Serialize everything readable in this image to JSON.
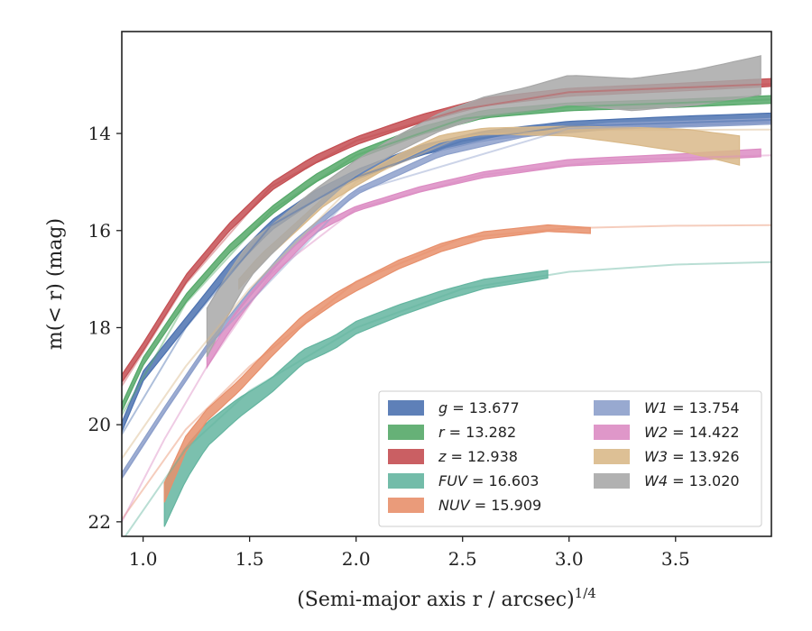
{
  "chart_data": {
    "type": "line",
    "xlabel_main": "(Semi-major axis r / arcsec)",
    "xlabel_exp": "1/4",
    "ylabel": "m(< r) (mag)",
    "xlim": [
      0.9,
      3.95
    ],
    "ylim": [
      22.3,
      11.9
    ],
    "y_inverted": true,
    "grid": false,
    "legend_placement": "bottom-right",
    "legend_columns": 2,
    "xticks": [
      1.0,
      1.5,
      2.0,
      2.5,
      3.0,
      3.5
    ],
    "xtick_labels": [
      "1.0",
      "1.5",
      "2.0",
      "2.5",
      "3.0",
      "3.5"
    ],
    "yticks": [
      14,
      16,
      18,
      20,
      22
    ],
    "ytick_labels": [
      "14",
      "16",
      "18",
      "20",
      "22"
    ],
    "series": [
      {
        "name": "g",
        "legend_value": "13.677",
        "legend_label": "g = 13.677",
        "color": "#4c72b0",
        "data": [
          [
            0.9,
            20.05
          ],
          [
            1.0,
            19.0
          ],
          [
            1.2,
            17.9
          ],
          [
            1.4,
            16.8
          ],
          [
            1.6,
            15.9
          ],
          [
            1.8,
            15.3
          ],
          [
            2.0,
            14.85
          ],
          [
            2.3,
            14.35
          ],
          [
            2.6,
            14.05
          ],
          [
            3.0,
            13.85
          ],
          [
            3.5,
            13.75
          ],
          [
            3.95,
            13.68
          ]
        ],
        "band": [
          [
            0.9,
            0.1
          ],
          [
            3.95,
            0.1
          ]
        ],
        "model": [
          [
            0.9,
            20.2
          ],
          [
            1.2,
            18.0
          ],
          [
            1.6,
            15.9
          ],
          [
            2.0,
            14.9
          ],
          [
            2.5,
            14.15
          ],
          [
            3.0,
            13.85
          ],
          [
            3.95,
            13.72
          ]
        ]
      },
      {
        "name": "r",
        "legend_value": "13.282",
        "legend_label": "r = 13.282",
        "color": "#55a868",
        "data": [
          [
            0.9,
            19.65
          ],
          [
            1.0,
            18.7
          ],
          [
            1.2,
            17.4
          ],
          [
            1.4,
            16.4
          ],
          [
            1.6,
            15.6
          ],
          [
            1.8,
            14.95
          ],
          [
            2.0,
            14.45
          ],
          [
            2.3,
            13.95
          ],
          [
            2.6,
            13.6
          ],
          [
            3.0,
            13.45
          ],
          [
            3.5,
            13.38
          ],
          [
            3.95,
            13.3
          ]
        ],
        "band": [
          [
            0.9,
            0.08
          ],
          [
            3.95,
            0.08
          ]
        ],
        "model": [
          [
            0.9,
            19.8
          ],
          [
            1.2,
            17.5
          ],
          [
            1.6,
            15.6
          ],
          [
            2.0,
            14.45
          ],
          [
            2.5,
            13.7
          ],
          [
            3.0,
            13.45
          ],
          [
            3.95,
            13.3
          ]
        ]
      },
      {
        "name": "z",
        "legend_value": "12.938",
        "legend_label": "z = 12.938",
        "color": "#c44e52",
        "data": [
          [
            0.9,
            19.05
          ],
          [
            1.0,
            18.4
          ],
          [
            1.2,
            17.0
          ],
          [
            1.4,
            15.95
          ],
          [
            1.6,
            15.1
          ],
          [
            1.8,
            14.55
          ],
          [
            2.0,
            14.15
          ],
          [
            2.3,
            13.7
          ],
          [
            2.6,
            13.35
          ],
          [
            3.0,
            13.15
          ],
          [
            3.5,
            13.05
          ],
          [
            3.95,
            12.95
          ]
        ],
        "band": [
          [
            0.9,
            0.08
          ],
          [
            3.95,
            0.08
          ]
        ],
        "model": [
          [
            0.9,
            19.2
          ],
          [
            1.2,
            17.1
          ],
          [
            1.6,
            15.1
          ],
          [
            2.0,
            14.15
          ],
          [
            2.5,
            13.5
          ],
          [
            3.0,
            13.15
          ],
          [
            3.95,
            12.98
          ]
        ]
      },
      {
        "name": "FUV",
        "legend_value": "16.603",
        "legend_label": "FUV = 16.603",
        "color": "#64b5a0",
        "data": [
          [
            1.1,
            21.65
          ],
          [
            1.2,
            20.8
          ],
          [
            1.3,
            20.2
          ],
          [
            1.45,
            19.65
          ],
          [
            1.6,
            19.2
          ],
          [
            1.75,
            18.6
          ],
          [
            1.9,
            18.3
          ],
          [
            2.0,
            18.0
          ],
          [
            2.2,
            17.65
          ],
          [
            2.4,
            17.35
          ],
          [
            2.6,
            17.1
          ],
          [
            2.9,
            16.9
          ]
        ],
        "band": [
          [
            1.1,
            0.45
          ],
          [
            1.3,
            0.25
          ],
          [
            1.6,
            0.15
          ],
          [
            2.9,
            0.08
          ]
        ],
        "model": [
          [
            0.9,
            22.4
          ],
          [
            1.2,
            20.5
          ],
          [
            1.5,
            19.3
          ],
          [
            2.0,
            18.0
          ],
          [
            2.5,
            17.2
          ],
          [
            3.0,
            16.85
          ],
          [
            3.5,
            16.7
          ],
          [
            3.95,
            16.65
          ]
        ]
      },
      {
        "name": "NUV",
        "legend_value": "15.909",
        "legend_label": "NUV = 15.909",
        "color": "#e8906c",
        "data": [
          [
            1.1,
            21.4
          ],
          [
            1.2,
            20.4
          ],
          [
            1.3,
            19.8
          ],
          [
            1.45,
            19.2
          ],
          [
            1.6,
            18.5
          ],
          [
            1.75,
            17.85
          ],
          [
            1.9,
            17.4
          ],
          [
            2.0,
            17.15
          ],
          [
            2.2,
            16.7
          ],
          [
            2.4,
            16.35
          ],
          [
            2.6,
            16.1
          ],
          [
            2.9,
            15.95
          ],
          [
            3.1,
            16.0
          ]
        ],
        "band": [
          [
            1.1,
            0.2
          ],
          [
            1.3,
            0.12
          ],
          [
            3.1,
            0.06
          ]
        ],
        "model": [
          [
            0.9,
            21.95
          ],
          [
            1.2,
            20.1
          ],
          [
            1.5,
            18.8
          ],
          [
            2.0,
            17.05
          ],
          [
            2.5,
            16.15
          ],
          [
            3.0,
            15.95
          ],
          [
            3.5,
            15.9
          ],
          [
            3.95,
            15.89
          ]
        ]
      },
      {
        "name": "W1",
        "legend_value": "13.754",
        "legend_label": "W1 = 13.754",
        "color": "#8da0cb",
        "data": [
          [
            0.9,
            21.05
          ],
          [
            1.1,
            19.7
          ],
          [
            1.3,
            18.4
          ],
          [
            1.5,
            17.3
          ],
          [
            1.7,
            16.3
          ],
          [
            2.0,
            15.2
          ],
          [
            2.4,
            14.4
          ],
          [
            2.8,
            14.0
          ],
          [
            3.2,
            13.85
          ],
          [
            3.6,
            13.8
          ],
          [
            3.95,
            13.75
          ]
        ],
        "band": [
          [
            0.9,
            0.06
          ],
          [
            3.95,
            0.06
          ]
        ],
        "model": [
          [
            0.9,
            21.1
          ],
          [
            1.3,
            18.4
          ],
          [
            2.0,
            15.2
          ],
          [
            3.0,
            13.9
          ],
          [
            3.95,
            13.76
          ]
        ]
      },
      {
        "name": "W2",
        "legend_value": "14.422",
        "legend_label": "W2 = 14.422",
        "color": "#dc8cc3",
        "data": [
          [
            1.3,
            18.7
          ],
          [
            1.4,
            18.0
          ],
          [
            1.5,
            17.4
          ],
          [
            1.6,
            16.9
          ],
          [
            1.8,
            16.0
          ],
          [
            2.0,
            15.55
          ],
          [
            2.3,
            15.15
          ],
          [
            2.6,
            14.85
          ],
          [
            3.0,
            14.6
          ],
          [
            3.5,
            14.5
          ],
          [
            3.9,
            14.4
          ]
        ],
        "band": [
          [
            1.3,
            0.12
          ],
          [
            2.0,
            0.05
          ],
          [
            3.9,
            0.08
          ]
        ],
        "model": [
          [
            0.9,
            22.0
          ],
          [
            1.1,
            20.3
          ],
          [
            1.3,
            18.8
          ],
          [
            1.6,
            16.9
          ],
          [
            2.0,
            15.55
          ],
          [
            2.6,
            14.85
          ],
          [
            3.2,
            14.55
          ],
          [
            3.95,
            14.45
          ]
        ]
      },
      {
        "name": "W3",
        "legend_value": "13.926",
        "legend_label": "W3 = 13.926",
        "color": "#d9b989",
        "data": [
          [
            1.45,
            17.1
          ],
          [
            1.55,
            16.6
          ],
          [
            1.7,
            16.0
          ],
          [
            1.85,
            15.4
          ],
          [
            2.0,
            15.0
          ],
          [
            2.2,
            14.5
          ],
          [
            2.4,
            14.1
          ],
          [
            2.6,
            13.95
          ],
          [
            3.0,
            13.95
          ],
          [
            3.3,
            14.05
          ],
          [
            3.55,
            14.15
          ],
          [
            3.8,
            14.35
          ]
        ],
        "band": [
          [
            1.45,
            0.1
          ],
          [
            2.6,
            0.06
          ],
          [
            3.0,
            0.1
          ],
          [
            3.4,
            0.2
          ],
          [
            3.8,
            0.3
          ]
        ],
        "model": [
          [
            0.9,
            20.7
          ],
          [
            1.2,
            18.8
          ],
          [
            1.5,
            17.2
          ],
          [
            2.0,
            15.0
          ],
          [
            2.5,
            14.05
          ],
          [
            3.0,
            13.93
          ],
          [
            3.95,
            13.92
          ]
        ]
      },
      {
        "name": "W4",
        "legend_value": "13.020",
        "legend_label": "W4 = 13.020",
        "color": "#a8a8a8",
        "data": [
          [
            1.3,
            18.1
          ],
          [
            1.4,
            17.3
          ],
          [
            1.5,
            16.6
          ],
          [
            1.65,
            16.0
          ],
          [
            1.8,
            15.4
          ],
          [
            2.0,
            14.7
          ],
          [
            2.2,
            14.2
          ],
          [
            2.4,
            13.75
          ],
          [
            2.6,
            13.45
          ],
          [
            2.8,
            13.3
          ],
          [
            3.0,
            13.1
          ],
          [
            3.3,
            13.2
          ],
          [
            3.6,
            13.05
          ],
          [
            3.9,
            12.8
          ]
        ],
        "band": [
          [
            1.3,
            0.5
          ],
          [
            1.6,
            0.3
          ],
          [
            2.0,
            0.15
          ],
          [
            2.6,
            0.2
          ],
          [
            3.0,
            0.3
          ],
          [
            3.5,
            0.35
          ],
          [
            3.9,
            0.4
          ]
        ],
        "model": []
      }
    ]
  }
}
